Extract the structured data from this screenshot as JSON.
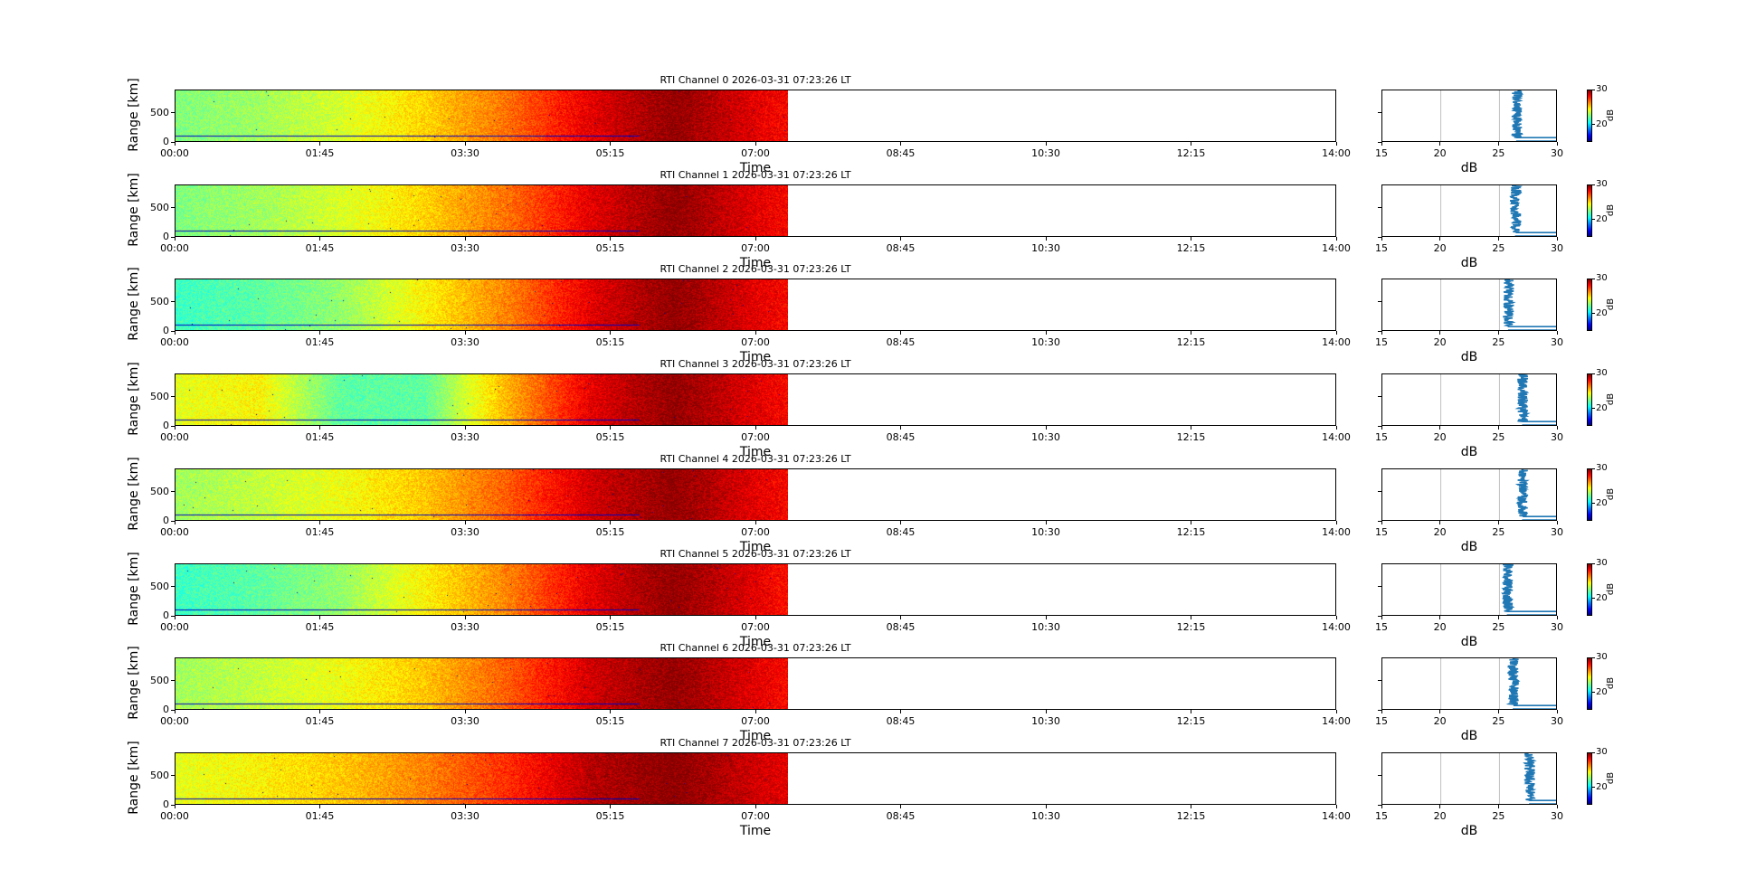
{
  "window": {
    "title": ""
  },
  "chart_data": [
    {
      "type": "heatmap",
      "title": "RTI Channel 0 2026-03-31 07:23:26 LT",
      "xlabel": "Time",
      "ylabel": "Range [km]",
      "x_ticks": [
        "00:00",
        "01:45",
        "03:30",
        "05:15",
        "07:00",
        "08:45",
        "10:30",
        "12:15",
        "14:00"
      ],
      "xlim": [
        "00:00",
        "14:00"
      ],
      "data_end": "07:23",
      "y_ticks": [
        0,
        500
      ],
      "ylim": [
        0,
        900
      ],
      "colorbar": {
        "label": "dB",
        "range": [
          15,
          30
        ],
        "ticks": [
          20,
          30
        ],
        "colormap": "jet"
      },
      "heatmap_level_db_by_hour": [
        22.5,
        23.0,
        23.8,
        25.0,
        26.5,
        28.5,
        29.8,
        28.5,
        27.5
      ],
      "profile": {
        "xlabel": "dB",
        "x_ticks": [
          15,
          20,
          25,
          30
        ],
        "xlim": [
          15,
          30
        ],
        "ylim": [
          0,
          900
        ],
        "grid_x": [
          20,
          25
        ],
        "mean_db": 26.5,
        "near_range_db": 30
      }
    },
    {
      "type": "heatmap",
      "title": "RTI Channel 1 2026-03-31 07:23:26 LT",
      "xlabel": "Time",
      "ylabel": "Range [km]",
      "x_ticks": [
        "00:00",
        "01:45",
        "03:30",
        "05:15",
        "07:00",
        "08:45",
        "10:30",
        "12:15",
        "14:00"
      ],
      "xlim": [
        "00:00",
        "14:00"
      ],
      "data_end": "07:23",
      "y_ticks": [
        0,
        500
      ],
      "ylim": [
        0,
        900
      ],
      "colorbar": {
        "label": "dB",
        "range": [
          15,
          30
        ],
        "ticks": [
          20,
          30
        ],
        "colormap": "jet"
      },
      "heatmap_level_db_by_hour": [
        22.5,
        23.0,
        23.8,
        25.0,
        26.5,
        28.5,
        29.8,
        28.5,
        27.5
      ],
      "profile": {
        "xlabel": "dB",
        "x_ticks": [
          15,
          20,
          25,
          30
        ],
        "xlim": [
          15,
          30
        ],
        "ylim": [
          0,
          900
        ],
        "grid_x": [
          20,
          25
        ],
        "mean_db": 26.4,
        "near_range_db": 30
      }
    },
    {
      "type": "heatmap",
      "title": "RTI Channel 2 2026-03-31 07:23:26 LT",
      "xlabel": "Time",
      "ylabel": "Range [km]",
      "x_ticks": [
        "00:00",
        "01:45",
        "03:30",
        "05:15",
        "07:00",
        "08:45",
        "10:30",
        "12:15",
        "14:00"
      ],
      "xlim": [
        "00:00",
        "14:00"
      ],
      "data_end": "07:23",
      "y_ticks": [
        0,
        500
      ],
      "ylim": [
        0,
        900
      ],
      "colorbar": {
        "label": "dB",
        "range": [
          15,
          30
        ],
        "ticks": [
          20,
          30
        ],
        "colormap": "jet"
      },
      "heatmap_level_db_by_hour": [
        21.5,
        22.0,
        22.8,
        24.5,
        26.2,
        28.5,
        29.8,
        28.5,
        27.5
      ],
      "profile": {
        "xlabel": "dB",
        "x_ticks": [
          15,
          20,
          25,
          30
        ],
        "xlim": [
          15,
          30
        ],
        "ylim": [
          0,
          900
        ],
        "grid_x": [
          20,
          25
        ],
        "mean_db": 25.8,
        "near_range_db": 30
      }
    },
    {
      "type": "heatmap",
      "title": "RTI Channel 3 2026-03-31 07:23:26 LT",
      "xlabel": "Time",
      "ylabel": "Range [km]",
      "x_ticks": [
        "00:00",
        "01:45",
        "03:30",
        "05:15",
        "07:00",
        "08:45",
        "10:30",
        "12:15",
        "14:00"
      ],
      "xlim": [
        "00:00",
        "14:00"
      ],
      "data_end": "07:23",
      "y_ticks": [
        0,
        500
      ],
      "ylim": [
        0,
        900
      ],
      "colorbar": {
        "label": "dB",
        "range": [
          15,
          30
        ],
        "ticks": [
          20,
          30
        ],
        "colormap": "jet"
      },
      "heatmap_level_db_by_hour": [
        24.0,
        24.5,
        22.0,
        22.0,
        25.5,
        28.5,
        29.8,
        28.5,
        27.5
      ],
      "profile": {
        "xlabel": "dB",
        "x_ticks": [
          15,
          20,
          25,
          30
        ],
        "xlim": [
          15,
          30
        ],
        "ylim": [
          0,
          900
        ],
        "grid_x": [
          20,
          25
        ],
        "mean_db": 27.0,
        "near_range_db": 30
      }
    },
    {
      "type": "heatmap",
      "title": "RTI Channel 4 2026-03-31 07:23:26 LT",
      "xlabel": "Time",
      "ylabel": "Range [km]",
      "x_ticks": [
        "00:00",
        "01:45",
        "03:30",
        "05:15",
        "07:00",
        "08:45",
        "10:30",
        "12:15",
        "14:00"
      ],
      "xlim": [
        "00:00",
        "14:00"
      ],
      "data_end": "07:23",
      "y_ticks": [
        0,
        500
      ],
      "ylim": [
        0,
        900
      ],
      "colorbar": {
        "label": "dB",
        "range": [
          15,
          30
        ],
        "ticks": [
          20,
          30
        ],
        "colormap": "jet"
      },
      "heatmap_level_db_by_hour": [
        23.0,
        23.5,
        24.2,
        25.2,
        26.8,
        28.8,
        29.8,
        28.5,
        27.5
      ],
      "profile": {
        "xlabel": "dB",
        "x_ticks": [
          15,
          20,
          25,
          30
        ],
        "xlim": [
          15,
          30
        ],
        "ylim": [
          0,
          900
        ],
        "grid_x": [
          20,
          25
        ],
        "mean_db": 27.0,
        "near_range_db": 30
      }
    },
    {
      "type": "heatmap",
      "title": "RTI Channel 5 2026-03-31 07:23:26 LT",
      "xlabel": "Time",
      "ylabel": "Range [km]",
      "x_ticks": [
        "00:00",
        "01:45",
        "03:30",
        "05:15",
        "07:00",
        "08:45",
        "10:30",
        "12:15",
        "14:00"
      ],
      "xlim": [
        "00:00",
        "14:00"
      ],
      "data_end": "07:23",
      "y_ticks": [
        0,
        500
      ],
      "ylim": [
        0,
        900
      ],
      "colorbar": {
        "label": "dB",
        "range": [
          15,
          30
        ],
        "ticks": [
          20,
          30
        ],
        "colormap": "jet"
      },
      "heatmap_level_db_by_hour": [
        21.5,
        22.0,
        22.8,
        24.5,
        26.2,
        28.5,
        29.8,
        28.5,
        27.0
      ],
      "profile": {
        "xlabel": "dB",
        "x_ticks": [
          15,
          20,
          25,
          30
        ],
        "xlim": [
          15,
          30
        ],
        "ylim": [
          0,
          900
        ],
        "grid_x": [
          20,
          25
        ],
        "mean_db": 25.7,
        "near_range_db": 30
      }
    },
    {
      "type": "heatmap",
      "title": "RTI Channel 6 2026-03-31 07:23:26 LT",
      "xlabel": "Time",
      "ylabel": "Range [km]",
      "x_ticks": [
        "00:00",
        "01:45",
        "03:30",
        "05:15",
        "07:00",
        "08:45",
        "10:30",
        "12:15",
        "14:00"
      ],
      "xlim": [
        "00:00",
        "14:00"
      ],
      "data_end": "07:23",
      "y_ticks": [
        0,
        500
      ],
      "ylim": [
        0,
        900
      ],
      "colorbar": {
        "label": "dB",
        "range": [
          15,
          30
        ],
        "ticks": [
          20,
          30
        ],
        "colormap": "jet"
      },
      "heatmap_level_db_by_hour": [
        23.0,
        23.5,
        24.2,
        25.2,
        26.8,
        28.8,
        29.8,
        28.5,
        27.5
      ],
      "profile": {
        "xlabel": "dB",
        "x_ticks": [
          15,
          20,
          25,
          30
        ],
        "xlim": [
          15,
          30
        ],
        "ylim": [
          0,
          900
        ],
        "grid_x": [
          20,
          25
        ],
        "mean_db": 26.2,
        "near_range_db": 30
      }
    },
    {
      "type": "heatmap",
      "title": "RTI Channel 7 2026-03-31 07:23:26 LT",
      "xlabel": "Time",
      "ylabel": "Range [km]",
      "x_ticks": [
        "00:00",
        "01:45",
        "03:30",
        "05:15",
        "07:00",
        "08:45",
        "10:30",
        "12:15",
        "14:00"
      ],
      "xlim": [
        "00:00",
        "14:00"
      ],
      "data_end": "07:23",
      "y_ticks": [
        0,
        500
      ],
      "ylim": [
        0,
        900
      ],
      "colorbar": {
        "label": "dB",
        "range": [
          15,
          30
        ],
        "ticks": [
          20,
          30
        ],
        "colormap": "jet"
      },
      "heatmap_level_db_by_hour": [
        24.0,
        24.5,
        25.2,
        26.2,
        27.5,
        29.2,
        29.9,
        28.8,
        28.0
      ],
      "profile": {
        "xlabel": "dB",
        "x_ticks": [
          15,
          20,
          25,
          30
        ],
        "xlim": [
          15,
          30
        ],
        "ylim": [
          0,
          900
        ],
        "grid_x": [
          20,
          25
        ],
        "mean_db": 27.6,
        "near_range_db": 30
      }
    }
  ]
}
